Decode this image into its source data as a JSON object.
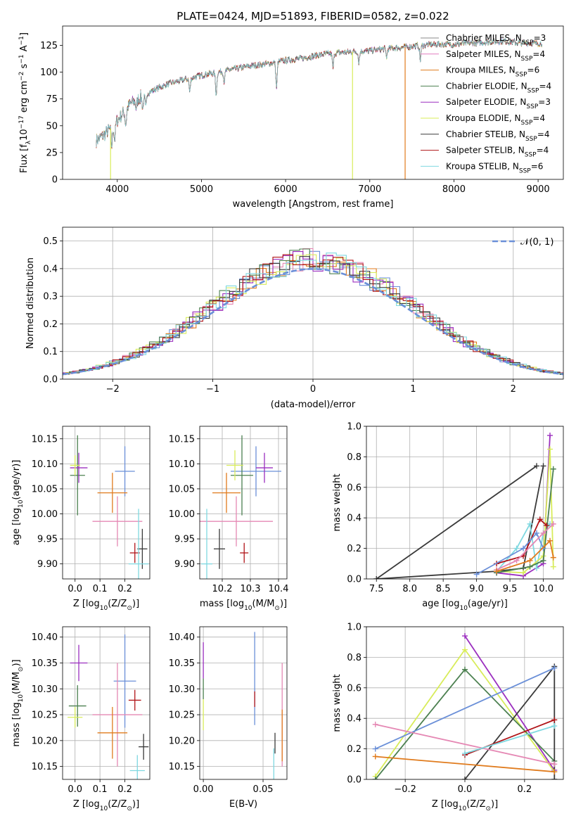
{
  "colors": {
    "cm": "#888888",
    "sm": "#e27fbf",
    "km": "#e07b1d",
    "ce": "#4c8050",
    "se": "#9b2ebf",
    "ke": "#d8ec5a",
    "cs": "#3a3a3a",
    "ss": "#b01418",
    "ks": "#7fd8e0",
    "blue": "#6a8fd8",
    "pink": "#e588b4"
  },
  "chart_data": [
    {
      "type": "line",
      "title": "PLATE=0424, MJD=51893, FIBERID=0582, z=0.022",
      "xlabel": "wavelength [Angstrom, rest frame]",
      "ylabel": "Flux [f",
      "ylabel_sub": "λ",
      "ylabel_rest": "10",
      "ylabel_exp": "−17",
      "ylabel_unit": " erg cm",
      "ylabel_e2": "−2",
      "ylabel_s": " s",
      "ylabel_e3": "−1",
      "ylabel_A": " A",
      "ylabel_e4": "−1",
      "ylabel_end": "]",
      "xlim": [
        3350,
        9300
      ],
      "ylim": [
        0,
        143
      ],
      "xticks": [
        4000,
        5000,
        6000,
        7000,
        8000,
        9000
      ],
      "yticks": [
        0,
        25,
        50,
        75,
        100,
        125
      ],
      "continuum_x": [
        3750,
        3850,
        3950,
        4050,
        4150,
        4300,
        4450,
        4600,
        4800,
        5000,
        5200,
        5400,
        5600,
        5800,
        6000,
        6200,
        6400,
        6600,
        6800,
        7000,
        7200,
        7400,
        7600,
        7800,
        8000,
        8200,
        8400,
        8600,
        8800,
        9050
      ],
      "continuum_y": [
        36,
        42,
        50,
        60,
        70,
        78,
        84,
        89,
        93,
        97,
        100,
        103,
        106,
        108,
        111,
        113,
        116,
        118,
        119,
        120,
        122,
        123,
        125,
        126,
        126,
        127,
        128,
        129,
        127,
        127
      ],
      "absorptions": [
        [
          3934,
          18
        ],
        [
          3969,
          15
        ],
        [
          4101,
          14
        ],
        [
          4226,
          8
        ],
        [
          4304,
          12
        ],
        [
          4340,
          12
        ],
        [
          4861,
          12
        ],
        [
          5175,
          20
        ],
        [
          5270,
          10
        ],
        [
          5892,
          24
        ],
        [
          6563,
          14
        ],
        [
          6870,
          10
        ],
        [
          7200,
          8
        ],
        [
          7600,
          14
        ]
      ],
      "legend": [
        {
          "key": "cm",
          "label": "Chabrier MILES, N",
          "sub": "SSP",
          "val": "=3"
        },
        {
          "key": "sm",
          "label": "Salpeter MILES, N",
          "sub": "SSP",
          "val": "=4"
        },
        {
          "key": "km",
          "label": "Kroupa MILES, N",
          "sub": "SSP",
          "val": "=6"
        },
        {
          "key": "ce",
          "label": "Chabrier ELODIE, N",
          "sub": "SSP",
          "val": "=4"
        },
        {
          "key": "se",
          "label": "Salpeter ELODIE, N",
          "sub": "SSP",
          "val": "=3"
        },
        {
          "key": "ke",
          "label": "Kroupa ELODIE, N",
          "sub": "SSP",
          "val": "=4"
        },
        {
          "key": "cs",
          "label": "Chabrier STELIB, N",
          "sub": "SSP",
          "val": "=4"
        },
        {
          "key": "ss",
          "label": "Salpeter STELIB, N",
          "sub": "SSP",
          "val": "=4"
        },
        {
          "key": "ks",
          "label": "Kroupa STELIB, N",
          "sub": "SSP",
          "val": "=6"
        }
      ],
      "drops": [
        {
          "key": "ke",
          "x": 3920
        },
        {
          "key": "ke",
          "x": 6795
        },
        {
          "key": "km",
          "x": 7420
        }
      ]
    },
    {
      "type": "histogram",
      "xlabel": "(data-model)/error",
      "ylabel": "Normed distribution",
      "xlim": [
        -2.5,
        2.5
      ],
      "ylim": [
        0,
        0.55
      ],
      "xticks": [
        -2,
        -1,
        0,
        1,
        2
      ],
      "xticklabels": [
        "−2",
        "−1",
        "0",
        "1",
        "2"
      ],
      "yticks": [
        0,
        0.1,
        0.2,
        0.3,
        0.4,
        0.5
      ],
      "yticklabels": [
        "0.0",
        "0.1",
        "0.2",
        "0.3",
        "0.4",
        "0.5"
      ],
      "legend": "𝒩(0, 1)",
      "bin_width": 0.1,
      "series_keys": [
        "blue",
        "pink",
        "km",
        "ce",
        "se",
        "ke",
        "cs",
        "ss",
        "ks"
      ]
    },
    {
      "type": "scatter",
      "xlabel": "Z [log",
      "xlabel_sub": "10",
      "xlabel_rest": "(Z/Z",
      "xlabel_sun": "⊙",
      "xlabel_end": ")]",
      "ylabel": "age  [log",
      "ylabel_sub": "10",
      "ylabel_rest": "(age/yr)]",
      "xlim": [
        -0.05,
        0.3
      ],
      "ylim": [
        9.87,
        10.175
      ],
      "xticks": [
        0.0,
        0.1,
        0.2
      ],
      "xticklabels": [
        "0.0",
        "0.1",
        "0.2"
      ],
      "yticks": [
        9.9,
        9.95,
        10.0,
        10.05,
        10.1,
        10.15
      ],
      "yticklabels": [
        "9.90",
        "9.95",
        "10.00",
        "10.05",
        "10.10",
        "10.15"
      ],
      "points": [
        {
          "k": "blue",
          "x": 0.2,
          "y": 10.085,
          "ex": 0.04,
          "ey": 0.05
        },
        {
          "k": "pink",
          "x": 0.17,
          "y": 9.985,
          "ex": 0.1,
          "ey": 0.05
        },
        {
          "k": "km",
          "x": 0.15,
          "y": 10.042,
          "ex": 0.06,
          "ey": 0.04
        },
        {
          "k": "ce",
          "x": 0.01,
          "y": 10.077,
          "ex": 0.03,
          "ey": 0.08
        },
        {
          "k": "se",
          "x": 0.015,
          "y": 10.092,
          "ex": 0.035,
          "ey": 0.03
        },
        {
          "k": "ke",
          "x": 0.0,
          "y": 10.097,
          "ex": 0.02,
          "ey": 0.02
        },
        {
          "k": "cs",
          "x": 0.27,
          "y": 9.93,
          "ex": 0.02,
          "ey": 0.04
        },
        {
          "k": "ss",
          "x": 0.24,
          "y": 9.922,
          "ex": 0.02,
          "ey": 0.02
        },
        {
          "k": "ks",
          "x": 0.255,
          "y": 9.9,
          "ex": 0.04,
          "ey": 0.11
        }
      ]
    },
    {
      "type": "scatter",
      "xlabel": "mass [log",
      "xlabel_sub": "10",
      "xlabel_rest": "(M/M",
      "xlabel_sun": "⊙",
      "xlabel_end": ")]",
      "xlim": [
        10.12,
        10.43
      ],
      "ylim": [
        9.87,
        10.175
      ],
      "xticks": [
        10.2,
        10.3,
        10.4
      ],
      "xticklabels": [
        "10.2",
        "10.3",
        "10.4"
      ],
      "yticks": [
        9.9,
        9.95,
        10.0,
        10.05,
        10.1,
        10.15
      ],
      "yticklabels": [
        "9.90",
        "9.95",
        "10.00",
        "10.05",
        "10.10",
        "10.15"
      ],
      "points": [
        {
          "k": "blue",
          "x": 10.32,
          "y": 10.085,
          "ex": 0.09,
          "ey": 0.05
        },
        {
          "k": "pink",
          "x": 10.25,
          "y": 9.985,
          "ex": 0.13,
          "ey": 0.05
        },
        {
          "k": "km",
          "x": 10.215,
          "y": 10.042,
          "ex": 0.05,
          "ey": 0.04
        },
        {
          "k": "ce",
          "x": 10.27,
          "y": 10.077,
          "ex": 0.04,
          "ey": 0.08
        },
        {
          "k": "se",
          "x": 10.35,
          "y": 10.092,
          "ex": 0.03,
          "ey": 0.03
        },
        {
          "k": "ke",
          "x": 10.245,
          "y": 10.097,
          "ex": 0.03,
          "ey": 0.03
        },
        {
          "k": "cs",
          "x": 10.19,
          "y": 9.93,
          "ex": 0.02,
          "ey": 0.04
        },
        {
          "k": "ss",
          "x": 10.278,
          "y": 9.922,
          "ex": 0.015,
          "ey": 0.02
        },
        {
          "k": "ks",
          "x": 10.145,
          "y": 9.9,
          "ex": 0.02,
          "ey": 0.11
        }
      ]
    },
    {
      "type": "line",
      "xlabel": "age  [log",
      "xlabel_sub": "10",
      "xlabel_rest": "(age/yr)]",
      "ylabel": "mass weight",
      "xlim": [
        7.35,
        10.3
      ],
      "ylim": [
        0,
        1
      ],
      "xticks": [
        7.5,
        8.0,
        8.5,
        9.0,
        9.5,
        10.0
      ],
      "xticklabels": [
        "7.5",
        "8.0",
        "8.5",
        "9.0",
        "9.5",
        "10.0"
      ],
      "yticks": [
        0,
        0.2,
        0.4,
        0.6,
        0.8,
        1.0
      ],
      "yticklabels": [
        "0.0",
        "0.2",
        "0.4",
        "0.6",
        "0.8",
        "1.0"
      ],
      "series": [
        {
          "k": "cs",
          "x": [
            9.9,
            7.5,
            9.3,
            9.7,
            10.0
          ],
          "y": [
            0.74,
            0.0,
            0.05,
            0.07,
            0.74
          ]
        },
        {
          "k": "se",
          "x": [
            9.3,
            9.7,
            10.0,
            10.1
          ],
          "y": [
            0.04,
            0.02,
            0.1,
            0.94
          ]
        },
        {
          "k": "ks",
          "x": [
            9.3,
            9.6,
            9.8,
            9.9,
            10.0,
            10.1
          ],
          "y": [
            0.05,
            0.2,
            0.36,
            0.07,
            0.3,
            0.36
          ]
        },
        {
          "k": "ke",
          "x": [
            9.3,
            9.7,
            10.0,
            10.1,
            10.15
          ],
          "y": [
            0.05,
            0.04,
            0.15,
            0.85,
            0.08
          ]
        },
        {
          "k": "ce",
          "x": [
            9.3,
            9.8,
            10.0,
            10.15
          ],
          "y": [
            0.04,
            0.08,
            0.12,
            0.72
          ]
        },
        {
          "k": "ss",
          "x": [
            9.3,
            9.7,
            9.95,
            10.05
          ],
          "y": [
            0.1,
            0.15,
            0.39,
            0.35
          ]
        },
        {
          "k": "blue",
          "x": [
            9.0,
            9.7,
            9.9,
            10.0
          ],
          "y": [
            0.03,
            0.2,
            0.3,
            0.2
          ]
        },
        {
          "k": "pink",
          "x": [
            9.3,
            9.6,
            10.0,
            10.15
          ],
          "y": [
            0.06,
            0.12,
            0.3,
            0.36
          ]
        },
        {
          "k": "km",
          "x": [
            9.3,
            9.8,
            10.1,
            10.15
          ],
          "y": [
            0.05,
            0.12,
            0.25,
            0.14
          ]
        }
      ]
    },
    {
      "type": "scatter",
      "xlabel": "Z [log",
      "xlabel_sub": "10",
      "xlabel_rest": "(Z/Z",
      "xlabel_sun": "⊙",
      "xlabel_end": ")]",
      "ylabel": "mass [log",
      "ylabel_sub": "10",
      "ylabel_rest": "(M/M",
      "ylabel_sun": "⊙",
      "ylabel_end": ")]",
      "xlim": [
        -0.05,
        0.3
      ],
      "ylim": [
        10.125,
        10.42
      ],
      "xticks": [
        0.0,
        0.1,
        0.2
      ],
      "xticklabels": [
        "0.0",
        "0.1",
        "0.2"
      ],
      "yticks": [
        10.15,
        10.2,
        10.25,
        10.3,
        10.35,
        10.4
      ],
      "yticklabels": [
        "10.15",
        "10.20",
        "10.25",
        "10.30",
        "10.35",
        "10.40"
      ],
      "points": [
        {
          "k": "blue",
          "x": 0.2,
          "y": 10.315,
          "ex": 0.045,
          "ey": 0.09
        },
        {
          "k": "pink",
          "x": 0.17,
          "y": 10.25,
          "ex": 0.1,
          "ey": 0.1
        },
        {
          "k": "km",
          "x": 0.15,
          "y": 10.215,
          "ex": 0.06,
          "ey": 0.05
        },
        {
          "k": "ce",
          "x": 0.01,
          "y": 10.267,
          "ex": 0.035,
          "ey": 0.04
        },
        {
          "k": "se",
          "x": 0.015,
          "y": 10.35,
          "ex": 0.035,
          "ey": 0.035
        },
        {
          "k": "ke",
          "x": 0.0,
          "y": 10.245,
          "ex": 0.03,
          "ey": 0.02
        },
        {
          "k": "cs",
          "x": 0.275,
          "y": 10.188,
          "ex": 0.02,
          "ey": 0.025
        },
        {
          "k": "ss",
          "x": 0.24,
          "y": 10.278,
          "ex": 0.025,
          "ey": 0.02
        },
        {
          "k": "ks",
          "x": 0.25,
          "y": 10.142,
          "ex": 0.03,
          "ey": 0.03
        }
      ]
    },
    {
      "type": "scatter",
      "xlabel": "E(B-V)",
      "xlim": [
        -0.003,
        0.07
      ],
      "ylim": [
        10.125,
        10.42
      ],
      "xticks": [
        0.0,
        0.05
      ],
      "xticklabels": [
        "0.00",
        "0.05"
      ],
      "yticks": [
        10.15,
        10.2,
        10.25,
        10.3,
        10.35,
        10.4
      ],
      "yticklabels": [
        "10.15",
        "10.20",
        "10.25",
        "10.30",
        "10.35",
        "10.40"
      ],
      "points": [
        {
          "k": "blue",
          "x": 0.043,
          "y": 10.32,
          "ex": 0,
          "ey": 0.09
        },
        {
          "k": "pink",
          "x": 0.066,
          "y": 10.25,
          "ex": 0,
          "ey": 0.1
        },
        {
          "k": "km",
          "x": 0.066,
          "y": 10.21,
          "ex": 0,
          "ey": 0.05
        },
        {
          "k": "ce",
          "x": 0.0,
          "y": 10.3,
          "ex": 0,
          "ey": 0.02
        },
        {
          "k": "se",
          "x": 0.0,
          "y": 10.355,
          "ex": 0,
          "ey": 0.035
        },
        {
          "k": "ke",
          "x": 0.0,
          "y": 10.25,
          "ex": 0,
          "ey": 0.03
        },
        {
          "k": "cs",
          "x": 0.06,
          "y": 10.195,
          "ex": 0,
          "ey": 0.02
        },
        {
          "k": "ss",
          "x": 0.043,
          "y": 10.28,
          "ex": 0,
          "ey": 0.015
        },
        {
          "k": "ks",
          "x": 0.059,
          "y": 10.155,
          "ex": 0,
          "ey": 0.03
        }
      ]
    },
    {
      "type": "line",
      "xlabel": "Z [log",
      "xlabel_sub": "10",
      "xlabel_rest": "(Z/Z",
      "xlabel_sun": "⊙",
      "xlabel_end": ")]",
      "ylabel": "mass weight",
      "xlim": [
        -0.33,
        0.33
      ],
      "ylim": [
        0,
        1
      ],
      "xticks": [
        -0.2,
        0.0,
        0.2
      ],
      "xticklabels": [
        "−0.2",
        "0.0",
        "0.2"
      ],
      "yticks": [
        0,
        0.2,
        0.4,
        0.6,
        0.8,
        1.0
      ],
      "yticklabels": [
        "0.0",
        "0.2",
        "0.4",
        "0.6",
        "0.8",
        "1.0"
      ],
      "series": [
        {
          "k": "se",
          "x": [
            0.0,
            0.3
          ],
          "y": [
            0.94,
            0.06
          ]
        },
        {
          "k": "ke",
          "x": [
            -0.3,
            0.0,
            0.3
          ],
          "y": [
            0.02,
            0.85,
            0.05
          ]
        },
        {
          "k": "ce",
          "x": [
            -0.3,
            0.0,
            0.3
          ],
          "y": [
            0.0,
            0.72,
            0.12
          ]
        },
        {
          "k": "cs",
          "x": [
            0.0,
            0.3,
            0.3
          ],
          "y": [
            0.0,
            0.74,
            0.0
          ]
        },
        {
          "k": "blue",
          "x": [
            -0.3,
            0.3
          ],
          "y": [
            0.2,
            0.73
          ]
        },
        {
          "k": "pink",
          "x": [
            -0.3,
            0.3
          ],
          "y": [
            0.36,
            0.1
          ]
        },
        {
          "k": "ss",
          "x": [
            0.0,
            0.3
          ],
          "y": [
            0.16,
            0.39
          ]
        },
        {
          "k": "ks",
          "x": [
            0.0,
            0.3
          ],
          "y": [
            0.17,
            0.35
          ]
        },
        {
          "k": "km",
          "x": [
            -0.3,
            0.3
          ],
          "y": [
            0.15,
            0.05
          ]
        }
      ]
    }
  ]
}
